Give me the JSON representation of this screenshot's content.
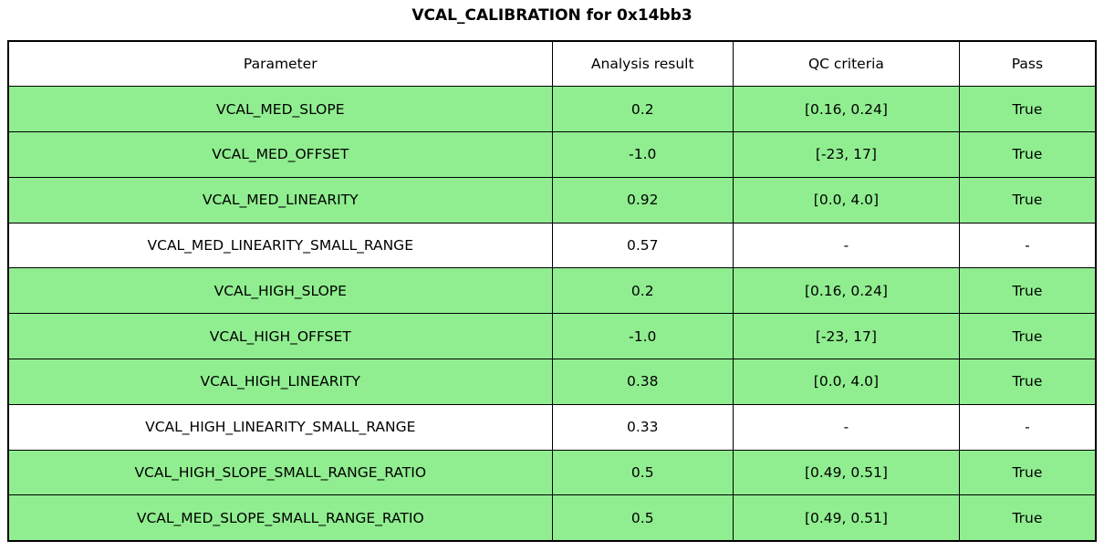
{
  "title": "VCAL_CALIBRATION for 0x14bb3",
  "colors": {
    "pass_row_bg": "#90EE90",
    "neutral_row_bg": "#FFFFFF",
    "header_bg": "#FFFFFF",
    "border": "#000000",
    "text": "#000000"
  },
  "table": {
    "columns": [
      "Parameter",
      "Analysis result",
      "QC criteria",
      "Pass"
    ],
    "rows": [
      {
        "parameter": "VCAL_MED_SLOPE",
        "result": "0.2",
        "qc_criteria": "[0.16, 0.24]",
        "pass": "True",
        "highlighted": true
      },
      {
        "parameter": "VCAL_MED_OFFSET",
        "result": "-1.0",
        "qc_criteria": "[-23, 17]",
        "pass": "True",
        "highlighted": true
      },
      {
        "parameter": "VCAL_MED_LINEARITY",
        "result": "0.92",
        "qc_criteria": "[0.0, 4.0]",
        "pass": "True",
        "highlighted": true
      },
      {
        "parameter": "VCAL_MED_LINEARITY_SMALL_RANGE",
        "result": "0.57",
        "qc_criteria": "-",
        "pass": "-",
        "highlighted": false
      },
      {
        "parameter": "VCAL_HIGH_SLOPE",
        "result": "0.2",
        "qc_criteria": "[0.16, 0.24]",
        "pass": "True",
        "highlighted": true
      },
      {
        "parameter": "VCAL_HIGH_OFFSET",
        "result": "-1.0",
        "qc_criteria": "[-23, 17]",
        "pass": "True",
        "highlighted": true
      },
      {
        "parameter": "VCAL_HIGH_LINEARITY",
        "result": "0.38",
        "qc_criteria": "[0.0, 4.0]",
        "pass": "True",
        "highlighted": true
      },
      {
        "parameter": "VCAL_HIGH_LINEARITY_SMALL_RANGE",
        "result": "0.33",
        "qc_criteria": "-",
        "pass": "-",
        "highlighted": false
      },
      {
        "parameter": "VCAL_HIGH_SLOPE_SMALL_RANGE_RATIO",
        "result": "0.5",
        "qc_criteria": "[0.49, 0.51]",
        "pass": "True",
        "highlighted": true
      },
      {
        "parameter": "VCAL_MED_SLOPE_SMALL_RANGE_RATIO",
        "result": "0.5",
        "qc_criteria": "[0.49, 0.51]",
        "pass": "True",
        "highlighted": true
      }
    ]
  }
}
